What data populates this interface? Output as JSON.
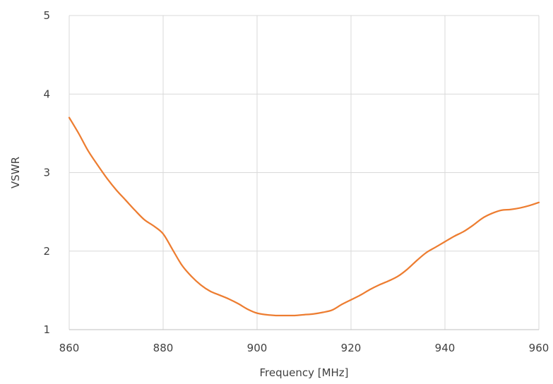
{
  "chart_data": {
    "type": "line",
    "title": "",
    "xlabel": "Frequency [MHz]",
    "ylabel": "VSWR",
    "xlim": [
      860,
      960
    ],
    "ylim": [
      1,
      5
    ],
    "x_ticks": [
      "860",
      "880",
      "900",
      "920",
      "940",
      "960"
    ],
    "y_ticks": [
      "1",
      "2",
      "3",
      "4",
      "5"
    ],
    "grid": true,
    "legend": "none",
    "series": [
      {
        "color": "#ed7d31",
        "x": [
          860,
          862,
          864,
          866,
          868,
          870,
          872,
          874,
          876,
          878,
          880,
          882,
          884,
          886,
          888,
          890,
          892,
          894,
          896,
          898,
          900,
          902,
          904,
          906,
          908,
          910,
          912,
          914,
          916,
          918,
          920,
          922,
          924,
          926,
          928,
          930,
          932,
          934,
          936,
          938,
          940,
          942,
          944,
          946,
          948,
          950,
          952,
          954,
          956,
          958,
          960
        ],
        "values": [
          3.7,
          3.5,
          3.28,
          3.1,
          2.93,
          2.78,
          2.65,
          2.52,
          2.4,
          2.32,
          2.22,
          2.02,
          1.82,
          1.68,
          1.57,
          1.49,
          1.44,
          1.39,
          1.33,
          1.26,
          1.21,
          1.19,
          1.18,
          1.18,
          1.18,
          1.19,
          1.2,
          1.22,
          1.25,
          1.32,
          1.38,
          1.44,
          1.51,
          1.57,
          1.62,
          1.68,
          1.77,
          1.88,
          1.98,
          2.05,
          2.12,
          2.19,
          2.25,
          2.33,
          2.42,
          2.48,
          2.52,
          2.53,
          2.55,
          2.58,
          2.62
        ]
      }
    ]
  }
}
